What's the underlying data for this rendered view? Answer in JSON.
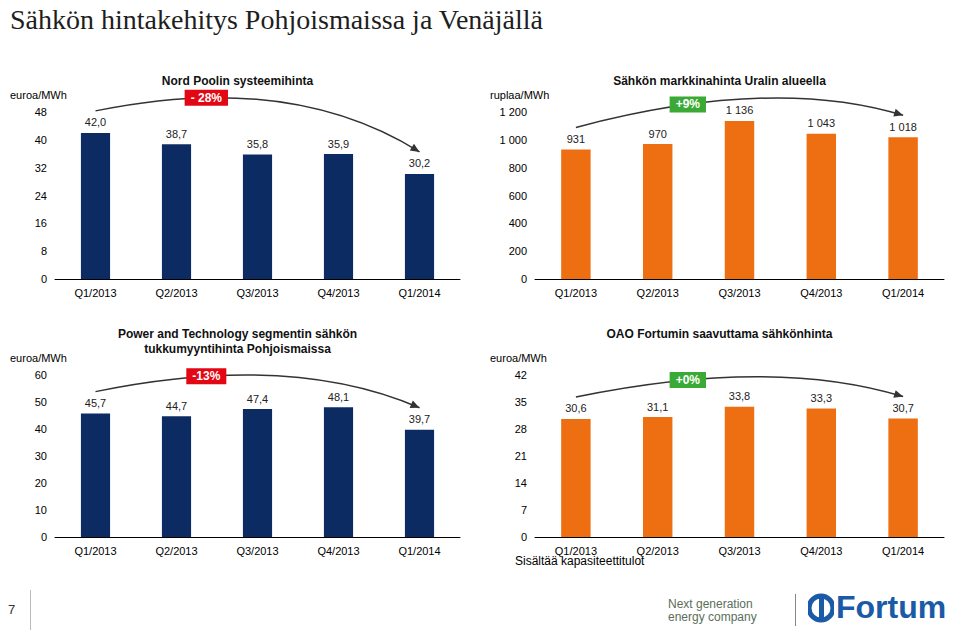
{
  "page": {
    "title": "Sähkön hintakehitys Pohjoismaissa ja Venäjällä",
    "page_number": 7,
    "tagline": [
      "Next generation",
      "energy company"
    ],
    "logo": "Fortum"
  },
  "chart_data": [
    {
      "type": "bar",
      "title": "Nord Poolin systeemihinta",
      "ylabel": "euroa/MWh",
      "categories": [
        "Q1/2013",
        "Q2/2013",
        "Q3/2013",
        "Q4/2013",
        "Q1/2014"
      ],
      "values": [
        42.0,
        38.7,
        35.8,
        35.9,
        30.2
      ],
      "value_labels": [
        "42,0",
        "38,7",
        "35,8",
        "35,9",
        "30,2"
      ],
      "color": "#0c2b63",
      "ylim": [
        0,
        48
      ],
      "yticks": [
        0,
        8,
        16,
        24,
        32,
        40,
        48
      ],
      "grid": false,
      "data_labels": true,
      "annotations": [
        {
          "text": "- 28%",
          "from": "Q1/2013",
          "to": "Q1/2014",
          "color": "#e30613"
        }
      ]
    },
    {
      "type": "bar",
      "title": "Sähkön markkinahinta Uralin alueella",
      "ylabel": "ruplaa/MWh",
      "categories": [
        "Q1/2013",
        "Q2/2013",
        "Q3/2013",
        "Q4/2013",
        "Q1/2014"
      ],
      "values": [
        931,
        970,
        1136,
        1043,
        1018
      ],
      "value_labels": [
        "931",
        "970",
        "1 136",
        "1 043",
        "1 018"
      ],
      "color": "#ee6e12",
      "ylim": [
        0,
        1200
      ],
      "yticks": [
        0,
        200,
        400,
        600,
        800,
        {
          "value": 1000,
          "label": "1 000"
        },
        {
          "value": 1200,
          "label": "1 200"
        }
      ],
      "grid": false,
      "data_labels": true,
      "annotations": [
        {
          "text": "+9%",
          "from": "Q1/2013",
          "to": "Q1/2014",
          "color": "#3aa935"
        }
      ]
    },
    {
      "type": "bar",
      "title": "Power and Technology segmentin sähkön\ntukkumyyntihinta Pohjoismaissa",
      "ylabel": "euroa/MWh",
      "categories": [
        "Q1/2013",
        "Q2/2013",
        "Q3/2013",
        "Q4/2013",
        "Q1/2014"
      ],
      "values": [
        45.7,
        44.7,
        47.4,
        48.1,
        39.7
      ],
      "value_labels": [
        "45,7",
        "44,7",
        "47,4",
        "48,1",
        "39,7"
      ],
      "color": "#0c2b63",
      "ylim": [
        0,
        60
      ],
      "yticks": [
        0,
        10,
        20,
        30,
        40,
        50,
        60
      ],
      "grid": false,
      "data_labels": true,
      "annotations": [
        {
          "text": "-13%",
          "from": "Q1/2013",
          "to": "Q1/2014",
          "color": "#e30613"
        }
      ]
    },
    {
      "type": "bar",
      "title": "OAO Fortumin saavuttama sähkönhinta",
      "ylabel": "euroa/MWh",
      "categories": [
        "Q1/2013",
        "Q2/2013",
        "Q3/2013",
        "Q4/2013",
        "Q1/2014"
      ],
      "values": [
        30.6,
        31.1,
        33.8,
        33.3,
        30.7
      ],
      "value_labels": [
        "30,6",
        "31,1",
        "33,8",
        "33,3",
        "30,7"
      ],
      "color": "#ee6e12",
      "ylim": [
        0,
        42
      ],
      "yticks": [
        0,
        7,
        14,
        21,
        28,
        35,
        42
      ],
      "grid": false,
      "data_labels": true,
      "annotations": [
        {
          "text": "+0%",
          "from": "Q1/2013",
          "to": "Q1/2014",
          "color": "#3aa935"
        }
      ],
      "note": "Sisältää kapasiteettitulot"
    }
  ]
}
